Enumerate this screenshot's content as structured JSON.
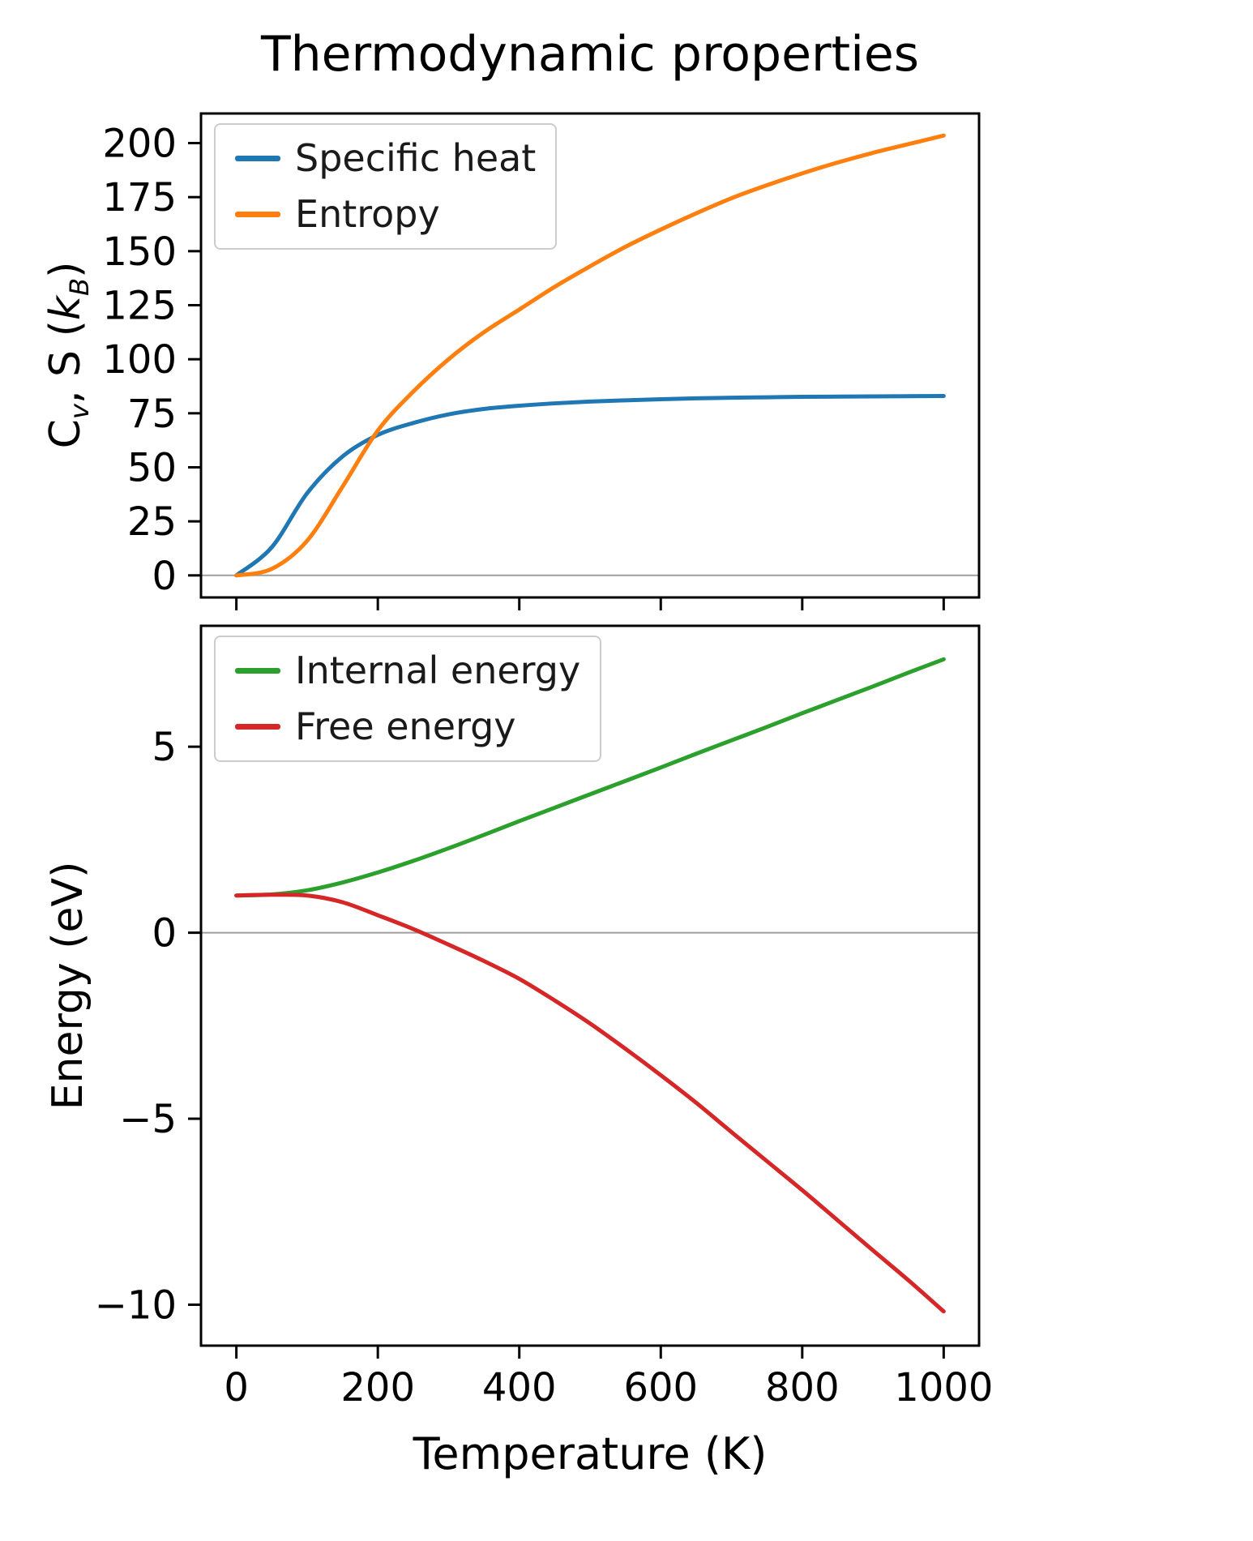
{
  "accent_colors": {
    "blue": "#1f77b4",
    "orange": "#ff7f0e",
    "green": "#2ca02c",
    "red": "#d62728",
    "zero_line": "#9e9e9e",
    "axes": "#000000"
  },
  "chart_data": [
    {
      "type": "line",
      "title": "Thermodynamic properties",
      "ylabel": "C_v, S (k_B)",
      "ylabel_parts": {
        "p1": "C",
        "sub1": "v",
        "p2": ", S (",
        "p3": "k",
        "sub2": "B",
        "p4": ")"
      },
      "xlabel": "",
      "xlim": [
        -50,
        1050
      ],
      "ylim": [
        -10.2,
        213.7
      ],
      "grid": false,
      "zero_line": true,
      "legend_position": "upper left",
      "xticks": {
        "values": [
          0,
          200,
          400,
          600,
          800,
          1000
        ],
        "labels": [
          "0",
          "200",
          "400",
          "600",
          "800",
          "1000"
        ]
      },
      "yticks": {
        "values": [
          0,
          25,
          50,
          75,
          100,
          125,
          150,
          175,
          200
        ],
        "labels": [
          "0",
          "25",
          "50",
          "75",
          "100",
          "125",
          "150",
          "175",
          "200"
        ]
      },
      "x": [
        0,
        50,
        100,
        150,
        200,
        250,
        300,
        350,
        400,
        450,
        500,
        550,
        600,
        650,
        700,
        750,
        800,
        850,
        900,
        950,
        1000
      ],
      "series": [
        {
          "name": "Specific heat",
          "color": "#1f77b4",
          "values": [
            0,
            13,
            38,
            55,
            65,
            70.5,
            74.5,
            77,
            78.5,
            79.6,
            80.4,
            81,
            81.5,
            81.9,
            82.2,
            82.4,
            82.6,
            82.7,
            82.8,
            82.9,
            83
          ]
        },
        {
          "name": "Entropy",
          "color": "#ff7f0e",
          "values": [
            0,
            3,
            16,
            41,
            67,
            85,
            100,
            112.5,
            123,
            133.5,
            143,
            152,
            160,
            167.5,
            174.5,
            180.5,
            186,
            191,
            195.5,
            199.5,
            203.5
          ]
        }
      ]
    },
    {
      "type": "line",
      "title": "",
      "ylabel": "Energy (eV)",
      "xlabel": "Temperature (K)",
      "xlim": [
        -50,
        1050
      ],
      "ylim": [
        -11.1,
        8.25
      ],
      "grid": false,
      "zero_line": true,
      "legend_position": "upper left",
      "xticks": {
        "values": [
          0,
          200,
          400,
          600,
          800,
          1000
        ],
        "labels": [
          "0",
          "200",
          "400",
          "600",
          "800",
          "1000"
        ]
      },
      "yticks": {
        "values": [
          -10,
          -5,
          0,
          5
        ],
        "labels": [
          "−10",
          "−5",
          "0",
          "5"
        ]
      },
      "x": [
        0,
        50,
        100,
        150,
        200,
        250,
        300,
        350,
        400,
        450,
        500,
        550,
        600,
        650,
        700,
        750,
        800,
        850,
        900,
        950,
        1000
      ],
      "series": [
        {
          "name": "Internal energy",
          "color": "#2ca02c",
          "values": [
            1.0,
            1.03,
            1.14,
            1.35,
            1.62,
            1.93,
            2.27,
            2.63,
            3.0,
            3.36,
            3.72,
            4.08,
            4.44,
            4.81,
            5.17,
            5.53,
            5.9,
            6.26,
            6.62,
            6.99,
            7.35
          ]
        },
        {
          "name": "Free energy",
          "color": "#d62728",
          "values": [
            1.0,
            1.02,
            1.0,
            0.82,
            0.47,
            0.1,
            -0.32,
            -0.76,
            -1.24,
            -1.82,
            -2.44,
            -3.12,
            -3.83,
            -4.57,
            -5.36,
            -6.14,
            -6.92,
            -7.73,
            -8.54,
            -9.34,
            -10.18
          ]
        }
      ]
    }
  ]
}
